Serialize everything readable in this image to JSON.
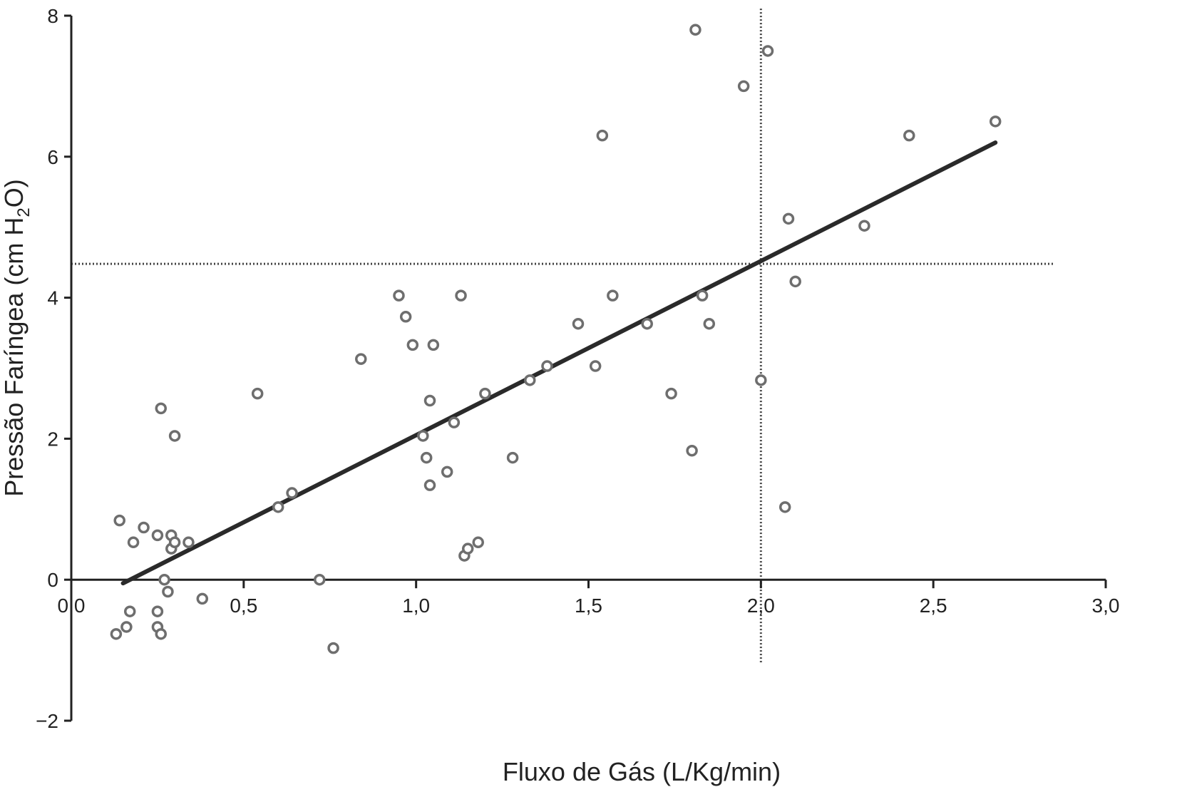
{
  "chart_data": {
    "type": "scatter",
    "xlabel": "Fluxo de Gás (L/Kg/min)",
    "ylabel": {
      "prefix": "Pressão Faríngea (cm H",
      "subscript": "2",
      "suffix": "O)"
    },
    "xlim": [
      0,
      3
    ],
    "ylim": [
      -2,
      8
    ],
    "x_ticks": [
      0,
      0.5,
      1.0,
      1.5,
      2.0,
      2.5,
      3.0
    ],
    "x_tick_labels": [
      "0,0",
      "0,5",
      "1,0",
      "1,5",
      "2,0",
      "2,5",
      "3,0"
    ],
    "y_ticks": [
      -2,
      0,
      2,
      4,
      6,
      8
    ],
    "y_tick_labels": [
      "−2",
      "0",
      "2",
      "4",
      "6",
      "8"
    ],
    "grid": false,
    "colors": {
      "points": "#6e6e6e",
      "line": "#2a2a2a",
      "axis": "#222222",
      "reference": "#444444"
    },
    "points": [
      {
        "x": 0.13,
        "y": -0.77
      },
      {
        "x": 0.16,
        "y": -0.67
      },
      {
        "x": 0.17,
        "y": -0.45
      },
      {
        "x": 0.25,
        "y": -0.45
      },
      {
        "x": 0.25,
        "y": -0.67
      },
      {
        "x": 0.26,
        "y": -0.77
      },
      {
        "x": 0.28,
        "y": -0.17
      },
      {
        "x": 0.27,
        "y": 0.0
      },
      {
        "x": 0.38,
        "y": -0.27
      },
      {
        "x": 0.14,
        "y": 0.84
      },
      {
        "x": 0.21,
        "y": 0.74
      },
      {
        "x": 0.18,
        "y": 0.53
      },
      {
        "x": 0.25,
        "y": 0.63
      },
      {
        "x": 0.29,
        "y": 0.63
      },
      {
        "x": 0.29,
        "y": 0.44
      },
      {
        "x": 0.3,
        "y": 0.53
      },
      {
        "x": 0.34,
        "y": 0.53
      },
      {
        "x": 0.26,
        "y": 2.43
      },
      {
        "x": 0.3,
        "y": 2.04
      },
      {
        "x": 0.54,
        "y": 2.64
      },
      {
        "x": 0.6,
        "y": 1.03
      },
      {
        "x": 0.64,
        "y": 1.23
      },
      {
        "x": 0.72,
        "y": 0.0
      },
      {
        "x": 0.76,
        "y": -0.97
      },
      {
        "x": 0.84,
        "y": 3.13
      },
      {
        "x": 0.95,
        "y": 4.03
      },
      {
        "x": 0.97,
        "y": 3.73
      },
      {
        "x": 0.99,
        "y": 3.33
      },
      {
        "x": 1.05,
        "y": 3.33
      },
      {
        "x": 1.04,
        "y": 2.54
      },
      {
        "x": 1.02,
        "y": 2.04
      },
      {
        "x": 1.03,
        "y": 1.73
      },
      {
        "x": 1.04,
        "y": 1.34
      },
      {
        "x": 1.09,
        "y": 1.53
      },
      {
        "x": 1.11,
        "y": 2.23
      },
      {
        "x": 1.13,
        "y": 4.03
      },
      {
        "x": 1.14,
        "y": 0.34
      },
      {
        "x": 1.15,
        "y": 0.44
      },
      {
        "x": 1.18,
        "y": 0.53
      },
      {
        "x": 1.2,
        "y": 2.64
      },
      {
        "x": 1.28,
        "y": 1.73
      },
      {
        "x": 1.33,
        "y": 2.83
      },
      {
        "x": 1.38,
        "y": 3.03
      },
      {
        "x": 1.47,
        "y": 3.63
      },
      {
        "x": 1.52,
        "y": 3.03
      },
      {
        "x": 1.54,
        "y": 6.3
      },
      {
        "x": 1.57,
        "y": 4.03
      },
      {
        "x": 1.67,
        "y": 3.63
      },
      {
        "x": 1.74,
        "y": 2.64
      },
      {
        "x": 1.8,
        "y": 1.83
      },
      {
        "x": 1.81,
        "y": 7.8
      },
      {
        "x": 1.83,
        "y": 4.03
      },
      {
        "x": 1.85,
        "y": 3.63
      },
      {
        "x": 1.95,
        "y": 7.0
      },
      {
        "x": 2.0,
        "y": 2.83
      },
      {
        "x": 2.02,
        "y": 7.5
      },
      {
        "x": 2.07,
        "y": 1.03
      },
      {
        "x": 2.08,
        "y": 5.12
      },
      {
        "x": 2.1,
        "y": 4.23
      },
      {
        "x": 2.3,
        "y": 5.02
      },
      {
        "x": 2.43,
        "y": 6.3
      },
      {
        "x": 2.68,
        "y": 6.5
      }
    ],
    "regression_line": {
      "x": [
        0.15,
        2.68
      ],
      "y": [
        -0.05,
        6.2
      ]
    },
    "reference_lines": [
      {
        "orientation": "horizontal",
        "y": 4.48,
        "x_range": [
          0,
          2.85
        ],
        "style": "dotted"
      },
      {
        "orientation": "vertical",
        "x": 2.0,
        "y_range": [
          -1.2,
          8.1
        ],
        "style": "dotted"
      }
    ]
  }
}
